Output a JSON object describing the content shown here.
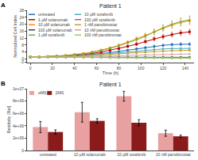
{
  "chart_data": [
    {
      "type": "line",
      "title": "Patient 1",
      "annotations": [
        "A"
      ],
      "xlabel": "Time (h)",
      "ylabel": "Normalized Cell Index",
      "x": [
        0,
        8,
        16,
        24,
        32,
        40,
        48,
        56,
        64,
        72,
        80,
        88,
        96,
        104,
        112,
        120,
        128,
        136,
        144
      ],
      "series": [
        {
          "name": "untreated",
          "color": "#1f6eb5",
          "marker": "circle",
          "values": [
            1.0,
            1.1,
            1.2,
            1.35,
            1.55,
            1.8,
            2.1,
            2.5,
            3.0,
            3.6,
            4.3,
            5.0,
            5.8,
            6.5,
            7.2,
            7.8,
            8.2,
            8.5,
            8.5
          ],
          "errors": [
            0.1,
            0.11,
            0.12,
            0.135,
            0.155,
            0.18,
            0.21,
            0.25,
            0.3,
            0.36,
            0.43,
            0.5,
            0.58,
            0.65,
            0.72,
            0.78,
            0.82,
            0.85,
            0.85
          ]
        },
        {
          "name": "1 μM solanumab",
          "color": "#c00000",
          "marker": "square",
          "values": [
            1.0,
            1.1,
            1.25,
            1.45,
            1.7,
            2.0,
            2.5,
            3.1,
            3.9,
            4.9,
            6.0,
            7.2,
            8.5,
            10.0,
            11.5,
            12.8,
            14.0,
            15.0,
            15.5
          ],
          "errors": [
            0.1,
            0.11,
            0.125,
            0.145,
            0.17,
            0.2,
            0.25,
            0.31,
            0.39,
            0.49,
            0.6,
            0.72,
            0.85,
            1.0,
            1.15,
            1.28,
            1.4,
            1.5,
            1.55
          ]
        },
        {
          "name": "10 μM solanumab",
          "color": "#ff8c00",
          "marker": "square",
          "values": [
            1.0,
            1.15,
            1.35,
            1.65,
            2.0,
            2.5,
            3.1,
            3.9,
            5.0,
            6.3,
            7.8,
            9.5,
            11.5,
            13.5,
            15.5,
            17.5,
            19.5,
            21.0,
            22.0
          ],
          "errors": [
            0.1,
            0.115,
            0.135,
            0.165,
            0.2,
            0.25,
            0.31,
            0.39,
            0.5,
            0.63,
            0.78,
            0.95,
            1.15,
            1.35,
            1.55,
            1.75,
            1.95,
            2.1,
            2.2
          ]
        },
        {
          "name": "100 μM solanumab",
          "color": "#404040",
          "marker": "diamond",
          "values": [
            1.0,
            1.0,
            0.98,
            0.97,
            0.96,
            0.95,
            0.94,
            0.93,
            0.92,
            0.92,
            0.91,
            0.91,
            0.9,
            0.9,
            0.89,
            0.89,
            0.89,
            0.88,
            0.88
          ],
          "errors": [
            0.1,
            0.1,
            0.098,
            0.097,
            0.096,
            0.095,
            0.094,
            0.093,
            0.092,
            0.092,
            0.091,
            0.091,
            0.09,
            0.09,
            0.089,
            0.089,
            0.089,
            0.088,
            0.088
          ]
        },
        {
          "name": "1 μM sorafenib",
          "color": "#70ad47",
          "marker": "triangle-up",
          "values": [
            1.0,
            1.12,
            1.3,
            1.55,
            1.9,
            2.3,
            2.9,
            3.7,
            4.7,
            6.0,
            7.5,
            9.2,
            11.0,
            13.0,
            15.5,
            18.0,
            20.0,
            21.5,
            22.5
          ],
          "errors": [
            0.1,
            0.112,
            0.13,
            0.155,
            0.19,
            0.23,
            0.29,
            0.37,
            0.47,
            0.6,
            0.75,
            0.92,
            1.1,
            1.3,
            1.55,
            1.8,
            2.0,
            2.15,
            2.25
          ]
        },
        {
          "name": "10 μM sorafenib",
          "color": "#4bacc6",
          "marker": "triangle-down",
          "values": [
            1.0,
            1.05,
            1.15,
            1.28,
            1.45,
            1.65,
            1.9,
            2.2,
            2.6,
            3.0,
            3.5,
            4.0,
            4.5,
            5.0,
            5.4,
            5.7,
            5.9,
            6.0,
            6.0
          ],
          "errors": [
            0.1,
            0.105,
            0.115,
            0.128,
            0.145,
            0.165,
            0.19,
            0.22,
            0.26,
            0.3,
            0.35,
            0.4,
            0.45,
            0.5,
            0.54,
            0.57,
            0.59,
            0.6,
            0.6
          ]
        },
        {
          "name": "100 μM sorafenib",
          "color": "#9e5fc0",
          "marker": "triangle-down",
          "values": [
            1.0,
            0.98,
            0.95,
            0.92,
            0.89,
            0.86,
            0.83,
            0.8,
            0.77,
            0.74,
            0.71,
            0.68,
            0.65,
            0.62,
            0.59,
            0.57,
            0.55,
            0.53,
            0.52
          ],
          "errors": [
            0.1,
            0.098,
            0.095,
            0.092,
            0.089,
            0.086,
            0.083,
            0.08,
            0.077,
            0.074,
            0.071,
            0.068,
            0.065,
            0.062,
            0.059,
            0.057,
            0.055,
            0.053,
            0.052
          ]
        },
        {
          "name": "1 nM panobinostat",
          "color": "#c9a227",
          "marker": "circle",
          "values": [
            1.0,
            1.05,
            1.12,
            1.22,
            1.35,
            1.5,
            1.7,
            1.95,
            2.2,
            2.55,
            2.9,
            3.25,
            3.6,
            3.95,
            4.25,
            4.5,
            4.7,
            4.85,
            4.95
          ],
          "errors": [
            0.1,
            0.105,
            0.112,
            0.122,
            0.135,
            0.15,
            0.17,
            0.195,
            0.22,
            0.255,
            0.29,
            0.325,
            0.36,
            0.395,
            0.425,
            0.45,
            0.47,
            0.485,
            0.495
          ]
        },
        {
          "name": "10 nM panobinostat",
          "color": "#d4a0a0",
          "marker": "triangle-up",
          "values": [
            1.0,
            1.02,
            1.06,
            1.12,
            1.19,
            1.28,
            1.38,
            1.5,
            1.63,
            1.77,
            1.92,
            2.07,
            2.22,
            2.37,
            2.5,
            2.6,
            2.7,
            2.75,
            2.8
          ],
          "errors": [
            0.1,
            0.102,
            0.106,
            0.112,
            0.119,
            0.128,
            0.138,
            0.15,
            0.163,
            0.177,
            0.192,
            0.207,
            0.222,
            0.237,
            0.25,
            0.26,
            0.27,
            0.275,
            0.28
          ]
        },
        {
          "name": "100 nM panobinostat",
          "color": "#92d050",
          "marker": "diamond",
          "values": [
            1.0,
            0.99,
            0.97,
            0.95,
            0.92,
            0.89,
            0.85,
            0.81,
            0.77,
            0.73,
            0.69,
            0.65,
            0.62,
            0.58,
            0.55,
            0.52,
            0.5,
            0.48,
            0.47
          ],
          "errors": [
            0.1,
            0.099,
            0.097,
            0.095,
            0.092,
            0.089,
            0.085,
            0.081,
            0.077,
            0.073,
            0.069,
            0.065,
            0.062,
            0.058,
            0.055,
            0.052,
            0.05,
            0.048,
            0.047
          ]
        }
      ],
      "xlim": [
        -3,
        148
      ],
      "xticks": [
        0,
        20,
        40,
        60,
        80,
        100,
        120,
        140
      ],
      "ylim": [
        -2,
        28
      ],
      "yticks": [
        -2,
        0,
        4,
        8,
        12,
        16,
        20,
        24,
        28
      ],
      "grid": false,
      "legend": "upper left"
    },
    {
      "type": "bar",
      "title": "Patient 1",
      "annotations": [
        "B"
      ],
      "ylabel": "Resitivity [Rel]",
      "categories": [
        "untreated",
        "10 μM solanumab",
        "10 μM sorafenib",
        "10 nM panobinostat"
      ],
      "series": [
        {
          "name": "αMS",
          "color": "#e8a0a0",
          "values": [
            3800000,
            6200000,
            8800000,
            2800000
          ],
          "errors": [
            900000,
            1600000,
            800000,
            500000
          ]
        },
        {
          "name": "βMS",
          "color": "#8b1a1a",
          "values": [
            3000000,
            4800000,
            4500000,
            2300000
          ],
          "errors": [
            350000,
            350000,
            500000,
            200000
          ]
        }
      ],
      "ylim": [
        0,
        10000000
      ],
      "yticks": [
        0,
        {
          "value": 2000000,
          "label": "2e+06"
        },
        {
          "value": 4000000,
          "label": "4e+06"
        },
        {
          "value": 6000000,
          "label": "6e+06"
        },
        {
          "value": 8000000,
          "label": "8e+06"
        },
        {
          "value": 10000000,
          "label": "1e+07"
        }
      ],
      "grid": false,
      "legend": "upper left"
    }
  ]
}
